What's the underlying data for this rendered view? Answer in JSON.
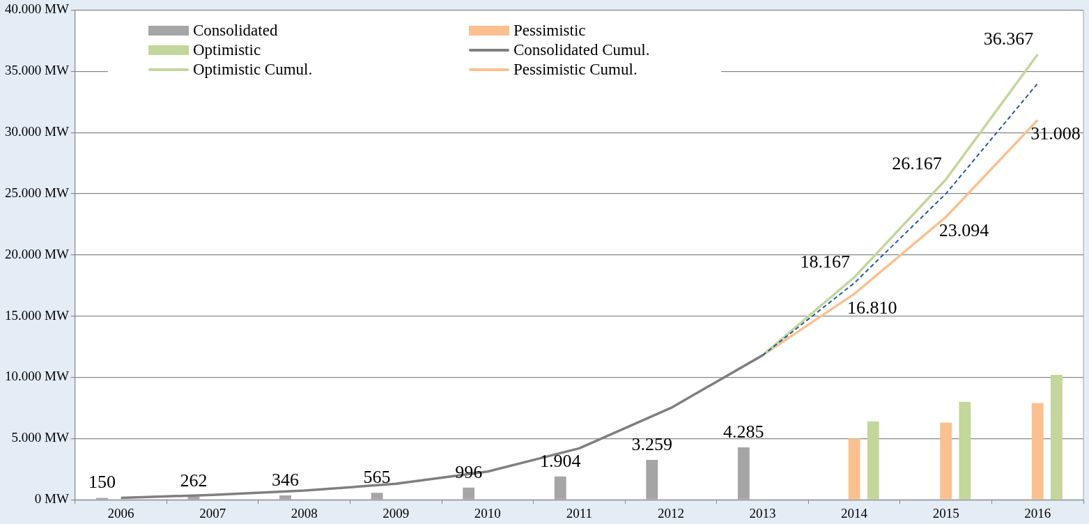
{
  "chart_data": {
    "type": "bar",
    "categories": [
      "2006",
      "2007",
      "2008",
      "2009",
      "2010",
      "2011",
      "2012",
      "2013",
      "2014",
      "2015",
      "2016"
    ],
    "ylim": [
      0,
      40000
    ],
    "yticks": [
      {
        "value": 0,
        "label": "0 MW"
      },
      {
        "value": 5000,
        "label": "5.000 MW"
      },
      {
        "value": 10000,
        "label": "10.000 MW"
      },
      {
        "value": 15000,
        "label": "15.000 MW"
      },
      {
        "value": 20000,
        "label": "20.000 MW"
      },
      {
        "value": 25000,
        "label": "25.000 MW"
      },
      {
        "value": 30000,
        "label": "30.000 MW"
      },
      {
        "value": 35000,
        "label": "35.000 MW"
      },
      {
        "value": 40000,
        "label": "40.000 MW"
      }
    ],
    "grid": "y",
    "legend": "top left",
    "series": [
      {
        "name": "Consolidated",
        "color": "#a5a5a5",
        "values": [
          150,
          262,
          346,
          565,
          996,
          1904,
          3259,
          4285,
          null,
          null,
          null
        ],
        "value_labels": [
          "150",
          "262",
          "346",
          "565",
          "996",
          "1.904",
          "3.259",
          "4.285",
          null,
          null,
          null
        ]
      },
      {
        "name": "Pessimistic",
        "color": "#fac090",
        "values": [
          null,
          null,
          null,
          null,
          null,
          null,
          null,
          null,
          5000,
          6300,
          7900
        ]
      },
      {
        "name": "Optimistic",
        "color": "#c3d69b",
        "values": [
          null,
          null,
          null,
          null,
          null,
          null,
          null,
          null,
          6400,
          8000,
          10200
        ]
      },
      {
        "name": "Consolidated Cumul.",
        "type": "line",
        "color": "#7f7f7f",
        "values": [
          150,
          400,
          750,
          1300,
          2300,
          4200,
          7500,
          11800,
          null,
          null,
          null
        ]
      },
      {
        "name": "Optimistic Cumul.",
        "type": "line",
        "color": "#c3d69b",
        "values": [
          null,
          null,
          null,
          null,
          null,
          null,
          null,
          11800,
          18167,
          26167,
          36367
        ],
        "value_labels": [
          null,
          null,
          null,
          null,
          null,
          null,
          null,
          null,
          "18.167",
          "26.167",
          "36.367"
        ]
      },
      {
        "name": "Pessimistic Cumul.",
        "type": "line",
        "color": "#fac090",
        "values": [
          null,
          null,
          null,
          null,
          null,
          null,
          null,
          11800,
          16810,
          23094,
          31008
        ],
        "value_labels": [
          null,
          null,
          null,
          null,
          null,
          null,
          null,
          null,
          "16.810",
          "23.094",
          "31.008"
        ]
      },
      {
        "type": "line",
        "color": "#1f5aa6",
        "line_style": "dashed",
        "values": [
          null,
          null,
          null,
          null,
          null,
          null,
          null,
          11800,
          17700,
          25000,
          34000
        ]
      }
    ]
  }
}
